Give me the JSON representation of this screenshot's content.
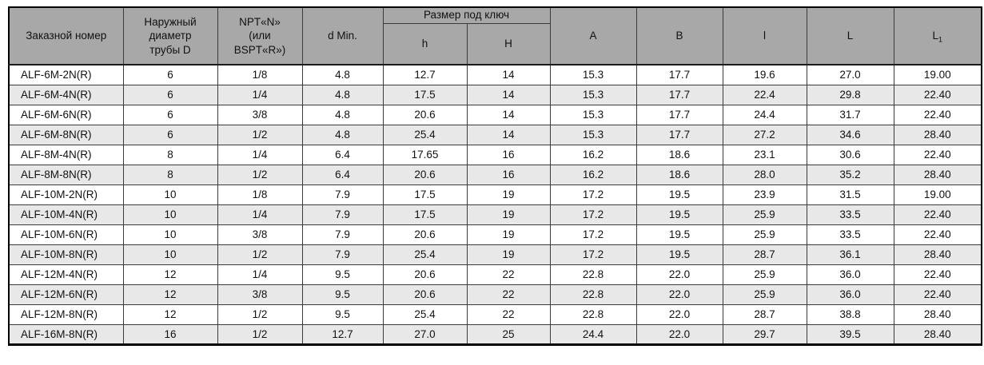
{
  "colors": {
    "header_bg": "#a8a8a8",
    "row_bg": "#ffffff",
    "row_alt_bg": "#e8e8e8",
    "grid_border": "#3a3a3a",
    "outer_border": "#000000",
    "text": "#111111"
  },
  "table": {
    "headers": {
      "order_number": "Заказной номер",
      "outer_diameter": "Наружный\nдиаметр\nтрубы D",
      "thread": "NPT«N»\n(или\nBSPT«R»)",
      "d_min": "d Min.",
      "wrench_size_group": "Размер под ключ",
      "h_small": "h",
      "h_big": "H",
      "a": "A",
      "b": "B",
      "l_small": "l",
      "l_big": "L",
      "l1_base": "L",
      "l1_sub": "1"
    },
    "rows": [
      [
        "ALF-6M-2N(R)",
        "6",
        "1/8",
        "4.8",
        "12.7",
        "14",
        "15.3",
        "17.7",
        "19.6",
        "27.0",
        "19.00"
      ],
      [
        "ALF-6M-4N(R)",
        "6",
        "1/4",
        "4.8",
        "17.5",
        "14",
        "15.3",
        "17.7",
        "22.4",
        "29.8",
        "22.40"
      ],
      [
        "ALF-6M-6N(R)",
        "6",
        "3/8",
        "4.8",
        "20.6",
        "14",
        "15.3",
        "17.7",
        "24.4",
        "31.7",
        "22.40"
      ],
      [
        "ALF-6M-8N(R)",
        "6",
        "1/2",
        "4.8",
        "25.4",
        "14",
        "15.3",
        "17.7",
        "27.2",
        "34.6",
        "28.40"
      ],
      [
        "ALF-8M-4N(R)",
        "8",
        "1/4",
        "6.4",
        "17.65",
        "16",
        "16.2",
        "18.6",
        "23.1",
        "30.6",
        "22.40"
      ],
      [
        "ALF-8M-8N(R)",
        "8",
        "1/2",
        "6.4",
        "20.6",
        "16",
        "16.2",
        "18.6",
        "28.0",
        "35.2",
        "28.40"
      ],
      [
        "ALF-10M-2N(R)",
        "10",
        "1/8",
        "7.9",
        "17.5",
        "19",
        "17.2",
        "19.5",
        "23.9",
        "31.5",
        "19.00"
      ],
      [
        "ALF-10M-4N(R)",
        "10",
        "1/4",
        "7.9",
        "17.5",
        "19",
        "17.2",
        "19.5",
        "25.9",
        "33.5",
        "22.40"
      ],
      [
        "ALF-10M-6N(R)",
        "10",
        "3/8",
        "7.9",
        "20.6",
        "19",
        "17.2",
        "19.5",
        "25.9",
        "33.5",
        "22.40"
      ],
      [
        "ALF-10M-8N(R)",
        "10",
        "1/2",
        "7.9",
        "25.4",
        "19",
        "17.2",
        "19.5",
        "28.7",
        "36.1",
        "28.40"
      ],
      [
        "ALF-12M-4N(R)",
        "12",
        "1/4",
        "9.5",
        "20.6",
        "22",
        "22.8",
        "22.0",
        "25.9",
        "36.0",
        "22.40"
      ],
      [
        "ALF-12M-6N(R)",
        "12",
        "3/8",
        "9.5",
        "20.6",
        "22",
        "22.8",
        "22.0",
        "25.9",
        "36.0",
        "22.40"
      ],
      [
        "ALF-12M-8N(R)",
        "12",
        "1/2",
        "9.5",
        "25.4",
        "22",
        "22.8",
        "22.0",
        "28.7",
        "38.8",
        "28.40"
      ],
      [
        "ALF-16M-8N(R)",
        "16",
        "1/2",
        "12.7",
        "27.0",
        "25",
        "24.4",
        "22.0",
        "29.7",
        "39.5",
        "28.40"
      ]
    ]
  }
}
